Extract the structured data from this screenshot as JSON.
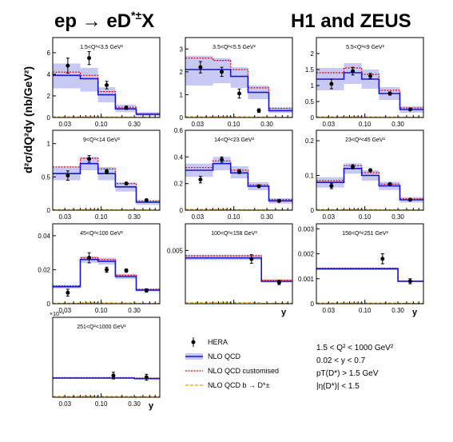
{
  "figure": {
    "title_left": "ep → eD",
    "title_left_sup": "*±",
    "title_left_tail": "X",
    "title_right": "H1 and ZEUS",
    "ylabel": "d²σ/dQ²dy (nb/GeV²)",
    "xlabel": "y"
  },
  "legend": {
    "items": [
      {
        "key": "data",
        "label": "HERA"
      },
      {
        "key": "nlo",
        "label": "NLO QCD"
      },
      {
        "key": "custom",
        "label": "NLO QCD customised"
      },
      {
        "key": "beauty",
        "label": "NLO QCD b → D*±"
      }
    ],
    "cuts": [
      "1.5 < Q² < 1000 GeV²",
      "0.02 < y < 0.7",
      "pT(D*) > 1.5 GeV",
      "|η(D*)| < 1.5"
    ]
  },
  "colors": {
    "band": "#c8c8f4",
    "nlo_line": "#1818c8",
    "customised": "#e00000",
    "beauty": "#e8a000",
    "data": "#000000"
  },
  "chart_data": [
    {
      "type": "histogram",
      "title": "1.5<Q²<3.5 GeV²",
      "xscale": "log",
      "xlim": [
        0.02,
        0.7
      ],
      "xticks": [
        "0.03",
        "0.10",
        "0.30"
      ],
      "ylim": [
        0,
        7.4
      ],
      "yticks": [
        "0",
        "2",
        "4",
        "6"
      ],
      "show_xlabel": false,
      "bins": [
        0.02,
        0.05,
        0.09,
        0.16,
        0.32,
        0.7
      ],
      "nlo": [
        3.9,
        3.6,
        2.1,
        0.8,
        0.3
      ],
      "band_low": [
        2.7,
        2.4,
        1.4,
        0.5,
        0.15
      ],
      "band_high": [
        5.0,
        4.6,
        2.8,
        1.2,
        0.5
      ],
      "custom": [
        4.2,
        3.9,
        2.4,
        0.95,
        0.35
      ],
      "beauty": [
        0.06,
        0.06,
        0.05,
        0.04,
        0.02
      ],
      "data": [
        [
          0.033,
          4.8,
          0.7
        ],
        [
          0.067,
          5.5,
          0.6
        ],
        [
          0.12,
          3.0,
          0.35
        ],
        [
          0.23,
          0.9,
          0.15
        ]
      ]
    },
    {
      "type": "histogram",
      "title": "3.5<Q²<5.5 GeV²",
      "xscale": "log",
      "xlim": [
        0.02,
        0.7
      ],
      "xticks": [
        "0.03",
        "0.10",
        "0.30"
      ],
      "ylim": [
        0,
        3.5
      ],
      "yticks": [
        "0",
        "1",
        "2",
        "3"
      ],
      "show_xlabel": false,
      "bins": [
        0.02,
        0.05,
        0.09,
        0.16,
        0.32,
        0.7
      ],
      "nlo": [
        2.1,
        2.1,
        1.8,
        1.1,
        0.3
      ],
      "band_low": [
        1.4,
        1.5,
        1.3,
        0.8,
        0.2
      ],
      "band_high": [
        2.7,
        2.6,
        2.2,
        1.4,
        0.45
      ],
      "custom": [
        2.6,
        2.5,
        2.1,
        1.3,
        0.4
      ],
      "beauty": [
        0.03,
        0.03,
        0.03,
        0.02,
        0.01
      ],
      "data": [
        [
          0.033,
          2.2,
          0.25
        ],
        [
          0.067,
          2.0,
          0.2
        ],
        [
          0.12,
          1.05,
          0.2
        ],
        [
          0.23,
          0.3,
          0.08
        ]
      ]
    },
    {
      "type": "histogram",
      "title": "5.5<Q²<9 GeV²",
      "xscale": "log",
      "xlim": [
        0.02,
        0.7
      ],
      "xticks": [
        "0.03",
        "0.10",
        "0.30"
      ],
      "ylim": [
        0,
        2.5
      ],
      "yticks": [
        "0",
        "0.5",
        "1",
        "1.5",
        "2"
      ],
      "show_xlabel": false,
      "bins": [
        0.02,
        0.05,
        0.09,
        0.16,
        0.32,
        0.7
      ],
      "nlo": [
        1.2,
        1.4,
        1.2,
        0.75,
        0.25
      ],
      "band_low": [
        0.85,
        1.05,
        0.9,
        0.55,
        0.15
      ],
      "band_high": [
        1.55,
        1.7,
        1.5,
        0.95,
        0.35
      ],
      "custom": [
        1.4,
        1.55,
        1.35,
        0.85,
        0.3
      ],
      "beauty": [
        0.02,
        0.02,
        0.02,
        0.015,
        0.01
      ],
      "data": [
        [
          0.033,
          1.05,
          0.15
        ],
        [
          0.067,
          1.45,
          0.12
        ],
        [
          0.12,
          1.3,
          0.08
        ],
        [
          0.23,
          0.75,
          0.05
        ],
        [
          0.45,
          0.25,
          0.03
        ]
      ]
    },
    {
      "type": "histogram",
      "title": "9<Q²<14 GeV²",
      "xscale": "log",
      "xlim": [
        0.02,
        0.7
      ],
      "xticks": [
        "0.03",
        "0.10",
        "0.30"
      ],
      "ylim": [
        0,
        1.2
      ],
      "yticks": [
        "0",
        "0.5",
        "1"
      ],
      "show_xlabel": false,
      "bins": [
        0.02,
        0.05,
        0.09,
        0.16,
        0.32,
        0.7
      ],
      "nlo": [
        0.55,
        0.7,
        0.55,
        0.35,
        0.12
      ],
      "band_low": [
        0.45,
        0.6,
        0.45,
        0.28,
        0.08
      ],
      "band_high": [
        0.65,
        0.8,
        0.65,
        0.42,
        0.15
      ],
      "custom": [
        0.65,
        0.78,
        0.62,
        0.4,
        0.14
      ],
      "beauty": [
        0.01,
        0.01,
        0.01,
        0.008,
        0.005
      ],
      "data": [
        [
          0.033,
          0.52,
          0.07
        ],
        [
          0.067,
          0.77,
          0.05
        ],
        [
          0.12,
          0.58,
          0.03
        ],
        [
          0.23,
          0.4,
          0.02
        ],
        [
          0.45,
          0.15,
          0.015
        ]
      ]
    },
    {
      "type": "histogram",
      "title": "14<Q²<23 GeV²",
      "xscale": "log",
      "xlim": [
        0.02,
        0.7
      ],
      "xticks": [
        "0.03",
        "0.10",
        "0.30"
      ],
      "ylim": [
        0,
        0.6
      ],
      "yticks": [
        "0",
        "0.2",
        "0.4",
        "0.6"
      ],
      "show_xlabel": false,
      "bins": [
        0.02,
        0.05,
        0.09,
        0.16,
        0.32,
        0.7
      ],
      "nlo": [
        0.3,
        0.35,
        0.28,
        0.18,
        0.07
      ],
      "band_low": [
        0.25,
        0.3,
        0.24,
        0.15,
        0.05
      ],
      "band_high": [
        0.35,
        0.4,
        0.33,
        0.21,
        0.09
      ],
      "custom": [
        0.32,
        0.37,
        0.3,
        0.19,
        0.08
      ],
      "beauty": [
        0.006,
        0.006,
        0.005,
        0.004,
        0.002
      ],
      "data": [
        [
          0.033,
          0.23,
          0.025
        ],
        [
          0.067,
          0.38,
          0.02
        ],
        [
          0.12,
          0.29,
          0.015
        ],
        [
          0.23,
          0.18,
          0.01
        ],
        [
          0.45,
          0.07,
          0.008
        ]
      ]
    },
    {
      "type": "histogram",
      "title": "23<Q²<45 GeV²",
      "xscale": "log",
      "xlim": [
        0.02,
        0.7
      ],
      "xticks": [
        "0.03",
        "0.10",
        "0.30"
      ],
      "ylim": [
        0,
        0.23
      ],
      "yticks": [
        "0",
        "0.1",
        "0.2"
      ],
      "show_xlabel": false,
      "bins": [
        0.02,
        0.05,
        0.09,
        0.16,
        0.32,
        0.7
      ],
      "nlo": [
        0.08,
        0.12,
        0.1,
        0.07,
        0.03
      ],
      "band_low": [
        0.065,
        0.105,
        0.085,
        0.058,
        0.022
      ],
      "band_high": [
        0.095,
        0.135,
        0.115,
        0.082,
        0.038
      ],
      "custom": [
        0.085,
        0.128,
        0.108,
        0.075,
        0.033
      ],
      "beauty": [
        0.002,
        0.002,
        0.002,
        0.0015,
        0.001
      ],
      "data": [
        [
          0.033,
          0.07,
          0.008
        ],
        [
          0.067,
          0.125,
          0.006
        ],
        [
          0.12,
          0.115,
          0.004
        ],
        [
          0.23,
          0.075,
          0.003
        ],
        [
          0.45,
          0.03,
          0.003
        ]
      ]
    },
    {
      "type": "histogram",
      "title": "45<Q²<100 GeV²",
      "xscale": "log",
      "xlim": [
        0.02,
        0.7
      ],
      "xticks": [
        "0.03",
        "0.10",
        "0.30"
      ],
      "ylim": [
        0,
        0.047
      ],
      "yticks": [
        "0",
        "0.02",
        "0.04"
      ],
      "show_xlabel": false,
      "bins": [
        0.02,
        0.05,
        0.09,
        0.16,
        0.32,
        0.7
      ],
      "nlo": [
        0.01,
        0.026,
        0.025,
        0.016,
        0.008
      ],
      "band_low": [
        0.009,
        0.024,
        0.023,
        0.0145,
        0.0072
      ],
      "band_high": [
        0.011,
        0.028,
        0.027,
        0.0175,
        0.0088
      ],
      "custom": [
        0.0105,
        0.027,
        0.026,
        0.0168,
        0.0085
      ],
      "beauty": [
        0.0003,
        0.0005,
        0.0005,
        0.0004,
        0.0002
      ],
      "data": [
        [
          0.033,
          0.0065,
          0.002
        ],
        [
          0.067,
          0.027,
          0.003
        ],
        [
          0.12,
          0.02,
          0.0015
        ],
        [
          0.23,
          0.0195,
          0.001
        ],
        [
          0.45,
          0.0078,
          0.001
        ]
      ]
    },
    {
      "type": "histogram",
      "title": "100<Q²<158 GeV²",
      "xscale": "log",
      "xlim": [
        0.02,
        0.7
      ],
      "xticks": [],
      "ylim": [
        0,
        0.0075
      ],
      "yticks": [
        "0.005"
      ],
      "show_xlabel": true,
      "bins": [
        0.02,
        0.25,
        0.7
      ],
      "nlo": [
        0.0043,
        0.0021
      ],
      "band_low": [
        0.0041,
        0.002
      ],
      "band_high": [
        0.0046,
        0.0023
      ],
      "custom": [
        0.0045,
        0.0022
      ],
      "beauty": [
        0.0001,
        5e-05
      ],
      "data": [
        [
          0.18,
          0.0042,
          0.0004
        ],
        [
          0.45,
          0.002,
          0.0002
        ]
      ]
    },
    {
      "type": "histogram",
      "title": "158<Q²<251 GeV²",
      "xscale": "log",
      "xlim": [
        0.02,
        0.7
      ],
      "xticks": [
        "0.03",
        "0.10",
        "0.30"
      ],
      "ylim": [
        0,
        0.0032
      ],
      "yticks": [
        "0",
        "0.001",
        "0.002",
        "0.003"
      ],
      "show_xlabel": true,
      "bins": [
        0.02,
        0.3,
        0.7
      ],
      "nlo": [
        0.0014,
        0.0009
      ],
      "band_low": [
        0.00135,
        0.00087
      ],
      "band_high": [
        0.00145,
        0.00094
      ],
      "custom": [
        0.00142,
        0.00091
      ],
      "beauty": [
        3e-05,
        2e-05
      ],
      "data": [
        [
          0.18,
          0.0018,
          0.0002
        ],
        [
          0.45,
          0.0009,
          0.0001
        ]
      ]
    },
    {
      "type": "histogram",
      "title": "251<Q²<1000 GeV²",
      "xscale": "log",
      "xlim": [
        0.02,
        0.7
      ],
      "xticks": [
        "0.03",
        "0.10",
        "0.30"
      ],
      "ylim": [
        0,
        0.00048
      ],
      "yticks": [],
      "exponent": "×10⁻³",
      "show_xlabel": true,
      "bins": [
        0.02,
        0.3,
        0.7
      ],
      "nlo": [
        0.000115,
        0.000112
      ],
      "band_low": [
        0.00011,
        0.000107
      ],
      "band_high": [
        0.00012,
        0.000117
      ],
      "custom": [
        0.000118,
        0.000115
      ],
      "beauty": [
        5e-06,
        4e-06
      ],
      "data": [
        [
          0.15,
          0.00013,
          2e-05
        ],
        [
          0.45,
          0.00012,
          1.8e-05
        ]
      ]
    }
  ]
}
